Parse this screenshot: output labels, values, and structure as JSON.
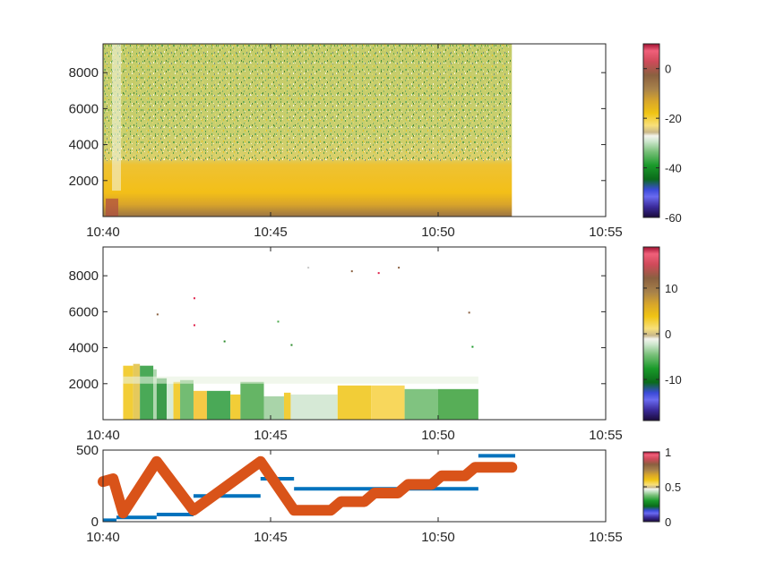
{
  "chart_data": [
    {
      "type": "heatmap",
      "x_ticks": [
        "10:40",
        "10:45",
        "10:50",
        "10:55"
      ],
      "x_minutes": [
        0,
        5,
        10,
        15
      ],
      "xlim_minutes": [
        0,
        15
      ],
      "y_ticks": [
        2000,
        4000,
        6000,
        8000
      ],
      "ylim": [
        0,
        9600
      ],
      "data_extent_minutes": [
        0,
        12.2
      ],
      "colorbar": {
        "ticks": [
          0,
          -20,
          -40,
          -60
        ],
        "range": [
          -60,
          10
        ]
      },
      "xlabel": "",
      "ylabel": "",
      "title": ""
    },
    {
      "type": "heatmap",
      "x_ticks": [
        "10:40",
        "10:45",
        "10:50",
        "10:55"
      ],
      "x_minutes": [
        0,
        5,
        10,
        15
      ],
      "xlim_minutes": [
        0,
        15
      ],
      "y_ticks": [
        2000,
        4000,
        6000,
        8000
      ],
      "ylim": [
        0,
        9600
      ],
      "data_extent_minutes": [
        0.6,
        11.2
      ],
      "colorbar": {
        "ticks": [
          10,
          0,
          -10
        ],
        "range": [
          -19,
          19
        ]
      },
      "xlabel": "",
      "ylabel": "",
      "title": ""
    },
    {
      "type": "line",
      "x_ticks": [
        "10:40",
        "10:45",
        "10:50",
        "10:55"
      ],
      "x_minutes": [
        0,
        5,
        10,
        15
      ],
      "xlim_minutes": [
        0,
        15
      ],
      "y_ticks": [
        0,
        500
      ],
      "ylim": [
        0,
        500
      ],
      "series": [
        {
          "color": "#0072BD",
          "style": "segments",
          "segments": [
            {
              "x": [
                0.0,
                0.4
              ],
              "y": 10
            },
            {
              "x": [
                0.4,
                1.6
              ],
              "y": 30
            },
            {
              "x": [
                1.6,
                2.7
              ],
              "y": 50
            },
            {
              "x": [
                2.7,
                4.7
              ],
              "y": 180
            },
            {
              "x": [
                4.7,
                5.7
              ],
              "y": 300
            },
            {
              "x": [
                5.7,
                11.2
              ],
              "y": 230
            },
            {
              "x": [
                11.2,
                12.3
              ],
              "y": 460
            }
          ]
        },
        {
          "color": "#D95319",
          "style": "thick",
          "x": [
            0.0,
            0.3,
            0.6,
            1.6,
            2.7,
            4.7,
            5.7,
            6.8,
            7.1,
            7.8,
            8.1,
            8.8,
            9.1,
            9.8,
            10.1,
            10.8,
            11.1,
            12.2
          ],
          "y": [
            280,
            300,
            60,
            420,
            80,
            420,
            80,
            80,
            140,
            140,
            200,
            200,
            260,
            260,
            320,
            320,
            380,
            380
          ]
        }
      ],
      "colorbar": {
        "ticks": [
          1,
          0.5,
          0
        ],
        "range": [
          0,
          1
        ]
      },
      "xlabel": "",
      "ylabel": "",
      "title": ""
    }
  ]
}
